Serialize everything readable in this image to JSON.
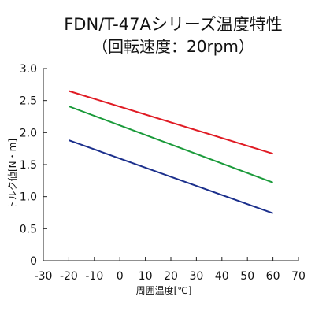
{
  "chart_data": {
    "type": "line",
    "title": "FDN/T-47Aシリーズ温度特性",
    "subtitle": "（回転速度：20rpm）",
    "xlabel": "周囲温度[℃]",
    "ylabel": "トルク値[N・m]",
    "xlim": [
      -30,
      70
    ],
    "ylim": [
      0,
      3.0
    ],
    "xticks": [
      -30,
      -20,
      -10,
      0,
      10,
      20,
      30,
      40,
      50,
      60,
      70
    ],
    "yticks": [
      0,
      0.5,
      1.0,
      1.5,
      2.0,
      2.5,
      3.0
    ],
    "ytick_labels": [
      "0",
      "0.5",
      "1.0",
      "1.5",
      "2.0",
      "2.5",
      "3.0"
    ],
    "grid": false,
    "series": [
      {
        "x": [
          -20,
          60
        ],
        "values": [
          2.65,
          1.67
        ],
        "color": "#e01b24"
      },
      {
        "x": [
          -20,
          60
        ],
        "values": [
          2.41,
          1.22
        ],
        "color": "#1a9a3a"
      },
      {
        "x": [
          -20,
          60
        ],
        "values": [
          1.88,
          0.74
        ],
        "color": "#1b2f8c"
      }
    ]
  }
}
